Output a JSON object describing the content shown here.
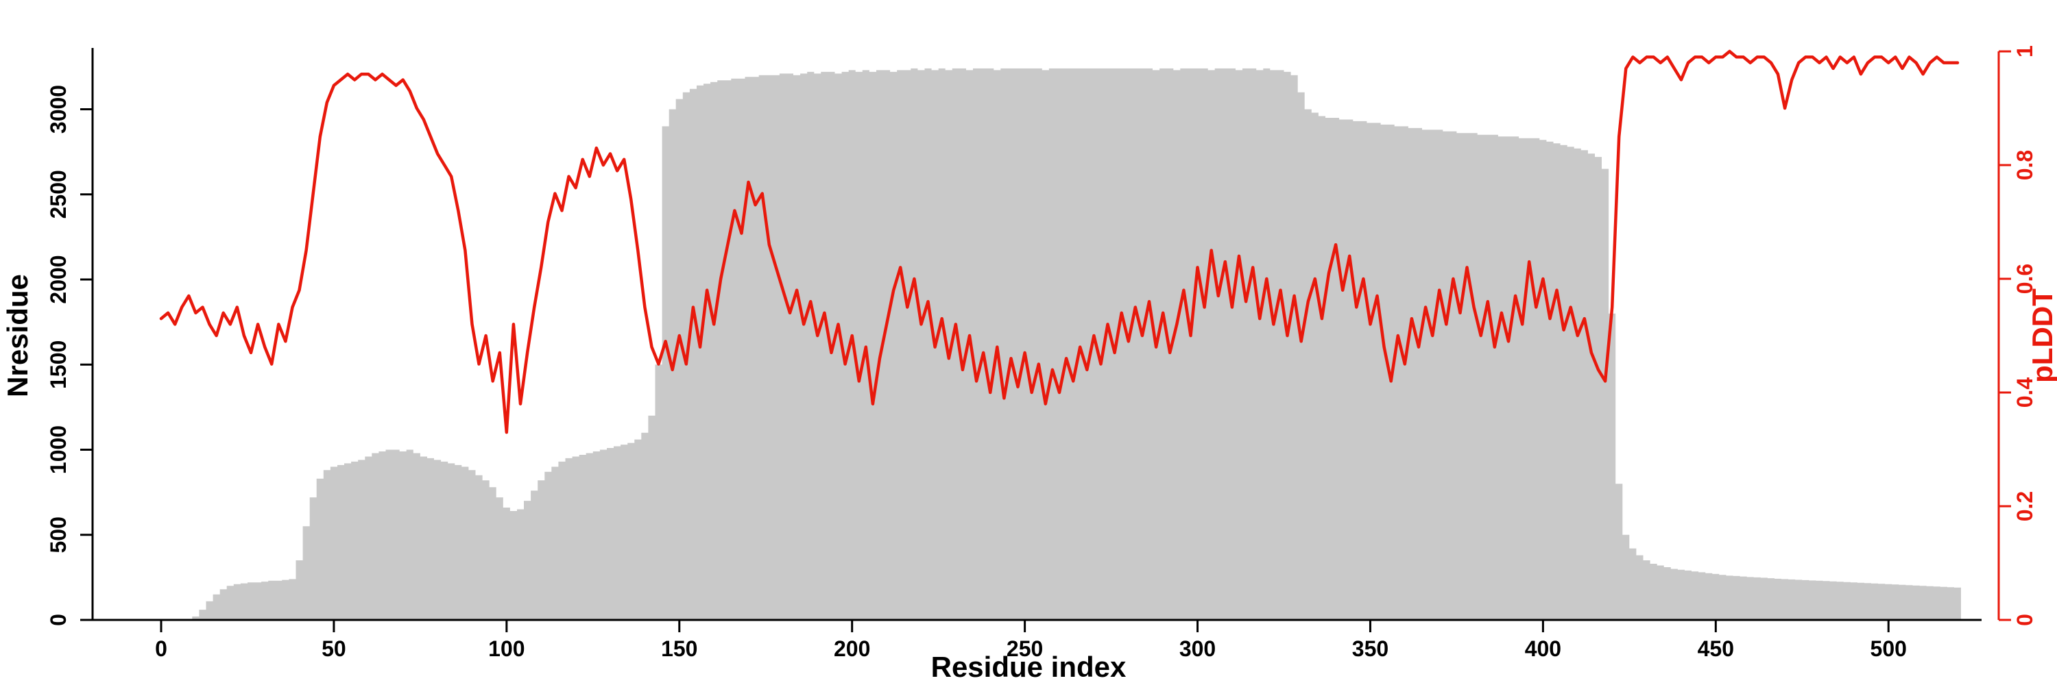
{
  "figure": {
    "background": "#ffffff",
    "bar_color": "#c9c9c9",
    "line_color": "#e8190c",
    "axis_color": "#000000"
  },
  "chart_data": {
    "type": "bar",
    "overlay_type": "line",
    "title": "",
    "xlabel": "Residue index",
    "x_start": 0,
    "x_step": 2,
    "xlim": [
      -15,
      535
    ],
    "x_ticks": [
      0,
      50,
      100,
      150,
      200,
      250,
      300,
      350,
      400,
      450,
      500
    ],
    "grid": false,
    "legend": "none",
    "left_axis": {
      "label": "Nresidue",
      "ticks": [
        0,
        500,
        1000,
        1500,
        2000,
        2500,
        3000
      ],
      "lim": [
        0,
        3300
      ],
      "color": "#000000"
    },
    "right_axis": {
      "label": "pLDDT",
      "ticks": [
        0,
        0.2,
        0.4,
        0.6,
        0.8,
        1
      ],
      "lim": [
        0,
        1
      ],
      "color": "#e8190c"
    },
    "series": [
      {
        "name": "Nresidue",
        "type": "bar",
        "axis": "left",
        "color": "#c9c9c9",
        "values": [
          0,
          0,
          0,
          0,
          5,
          20,
          60,
          110,
          150,
          180,
          200,
          210,
          215,
          220,
          220,
          225,
          230,
          230,
          235,
          240,
          350,
          550,
          720,
          830,
          880,
          900,
          910,
          920,
          930,
          940,
          960,
          980,
          990,
          1000,
          1000,
          990,
          1000,
          980,
          960,
          950,
          940,
          930,
          920,
          910,
          900,
          880,
          850,
          820,
          780,
          720,
          660,
          640,
          650,
          700,
          760,
          820,
          870,
          900,
          930,
          950,
          960,
          970,
          980,
          990,
          1000,
          1010,
          1020,
          1030,
          1040,
          1060,
          1100,
          1200,
          1500,
          2900,
          3000,
          3060,
          3100,
          3120,
          3140,
          3150,
          3160,
          3170,
          3170,
          3180,
          3180,
          3190,
          3190,
          3200,
          3200,
          3200,
          3210,
          3210,
          3200,
          3210,
          3220,
          3210,
          3220,
          3220,
          3210,
          3220,
          3230,
          3220,
          3230,
          3220,
          3230,
          3230,
          3220,
          3230,
          3230,
          3240,
          3230,
          3240,
          3230,
          3240,
          3230,
          3240,
          3240,
          3230,
          3240,
          3240,
          3240,
          3230,
          3240,
          3240,
          3240,
          3240,
          3240,
          3240,
          3230,
          3240,
          3240,
          3240,
          3240,
          3240,
          3240,
          3240,
          3240,
          3240,
          3240,
          3240,
          3240,
          3240,
          3240,
          3240,
          3230,
          3240,
          3240,
          3230,
          3240,
          3240,
          3240,
          3240,
          3230,
          3240,
          3240,
          3240,
          3230,
          3240,
          3240,
          3230,
          3240,
          3230,
          3230,
          3220,
          3200,
          3100,
          3000,
          2980,
          2960,
          2950,
          2950,
          2940,
          2940,
          2930,
          2930,
          2920,
          2920,
          2910,
          2910,
          2900,
          2900,
          2890,
          2890,
          2880,
          2880,
          2880,
          2870,
          2870,
          2860,
          2860,
          2860,
          2850,
          2850,
          2850,
          2840,
          2840,
          2840,
          2830,
          2830,
          2830,
          2820,
          2810,
          2800,
          2790,
          2780,
          2770,
          2760,
          2740,
          2720,
          2650,
          1800,
          800,
          500,
          420,
          380,
          350,
          330,
          320,
          310,
          300,
          295,
          290,
          285,
          280,
          275,
          270,
          265,
          260,
          258,
          255,
          252,
          250,
          248,
          245,
          242,
          240,
          238,
          236,
          234,
          232,
          230,
          228,
          226,
          224,
          222,
          220,
          218,
          216,
          214,
          212,
          210,
          208,
          206,
          204,
          202,
          200,
          198,
          196,
          194,
          192,
          190
        ]
      },
      {
        "name": "pLDDT",
        "type": "line",
        "axis": "right",
        "color": "#e8190c",
        "values": [
          0.53,
          0.54,
          0.52,
          0.55,
          0.57,
          0.54,
          0.55,
          0.52,
          0.5,
          0.54,
          0.52,
          0.55,
          0.5,
          0.47,
          0.52,
          0.48,
          0.45,
          0.52,
          0.49,
          0.55,
          0.58,
          0.65,
          0.75,
          0.85,
          0.91,
          0.94,
          0.95,
          0.96,
          0.95,
          0.96,
          0.96,
          0.95,
          0.96,
          0.95,
          0.94,
          0.95,
          0.93,
          0.9,
          0.88,
          0.85,
          0.82,
          0.8,
          0.78,
          0.72,
          0.65,
          0.52,
          0.45,
          0.5,
          0.42,
          0.47,
          0.33,
          0.52,
          0.38,
          0.47,
          0.55,
          0.62,
          0.7,
          0.75,
          0.72,
          0.78,
          0.76,
          0.81,
          0.78,
          0.83,
          0.8,
          0.82,
          0.79,
          0.81,
          0.74,
          0.65,
          0.55,
          0.48,
          0.45,
          0.49,
          0.44,
          0.5,
          0.45,
          0.55,
          0.48,
          0.58,
          0.52,
          0.6,
          0.66,
          0.72,
          0.68,
          0.77,
          0.73,
          0.75,
          0.66,
          0.62,
          0.58,
          0.54,
          0.58,
          0.52,
          0.56,
          0.5,
          0.54,
          0.47,
          0.52,
          0.45,
          0.5,
          0.42,
          0.48,
          0.38,
          0.46,
          0.52,
          0.58,
          0.62,
          0.55,
          0.6,
          0.52,
          0.56,
          0.48,
          0.53,
          0.46,
          0.52,
          0.44,
          0.5,
          0.42,
          0.47,
          0.4,
          0.48,
          0.39,
          0.46,
          0.41,
          0.47,
          0.4,
          0.45,
          0.38,
          0.44,
          0.4,
          0.46,
          0.42,
          0.48,
          0.44,
          0.5,
          0.45,
          0.52,
          0.47,
          0.54,
          0.49,
          0.55,
          0.5,
          0.56,
          0.48,
          0.54,
          0.47,
          0.52,
          0.58,
          0.5,
          0.62,
          0.55,
          0.65,
          0.57,
          0.63,
          0.55,
          0.64,
          0.56,
          0.62,
          0.53,
          0.6,
          0.52,
          0.58,
          0.5,
          0.57,
          0.49,
          0.56,
          0.6,
          0.53,
          0.61,
          0.66,
          0.58,
          0.64,
          0.55,
          0.6,
          0.52,
          0.57,
          0.48,
          0.42,
          0.5,
          0.45,
          0.53,
          0.48,
          0.55,
          0.5,
          0.58,
          0.52,
          0.6,
          0.54,
          0.62,
          0.55,
          0.5,
          0.56,
          0.48,
          0.54,
          0.49,
          0.57,
          0.52,
          0.63,
          0.55,
          0.6,
          0.53,
          0.58,
          0.51,
          0.55,
          0.5,
          0.53,
          0.47,
          0.44,
          0.42,
          0.55,
          0.85,
          0.97,
          0.99,
          0.98,
          0.99,
          0.99,
          0.98,
          0.99,
          0.97,
          0.95,
          0.98,
          0.99,
          0.99,
          0.98,
          0.99,
          0.99,
          1.0,
          0.99,
          0.99,
          0.98,
          0.99,
          0.99,
          0.98,
          0.96,
          0.9,
          0.95,
          0.98,
          0.99,
          0.99,
          0.98,
          0.99,
          0.97,
          0.99,
          0.98,
          0.99,
          0.96,
          0.98,
          0.99,
          0.99,
          0.98,
          0.99,
          0.97,
          0.99,
          0.98,
          0.96,
          0.98,
          0.99,
          0.98,
          0.98,
          0.98
        ]
      }
    ]
  }
}
